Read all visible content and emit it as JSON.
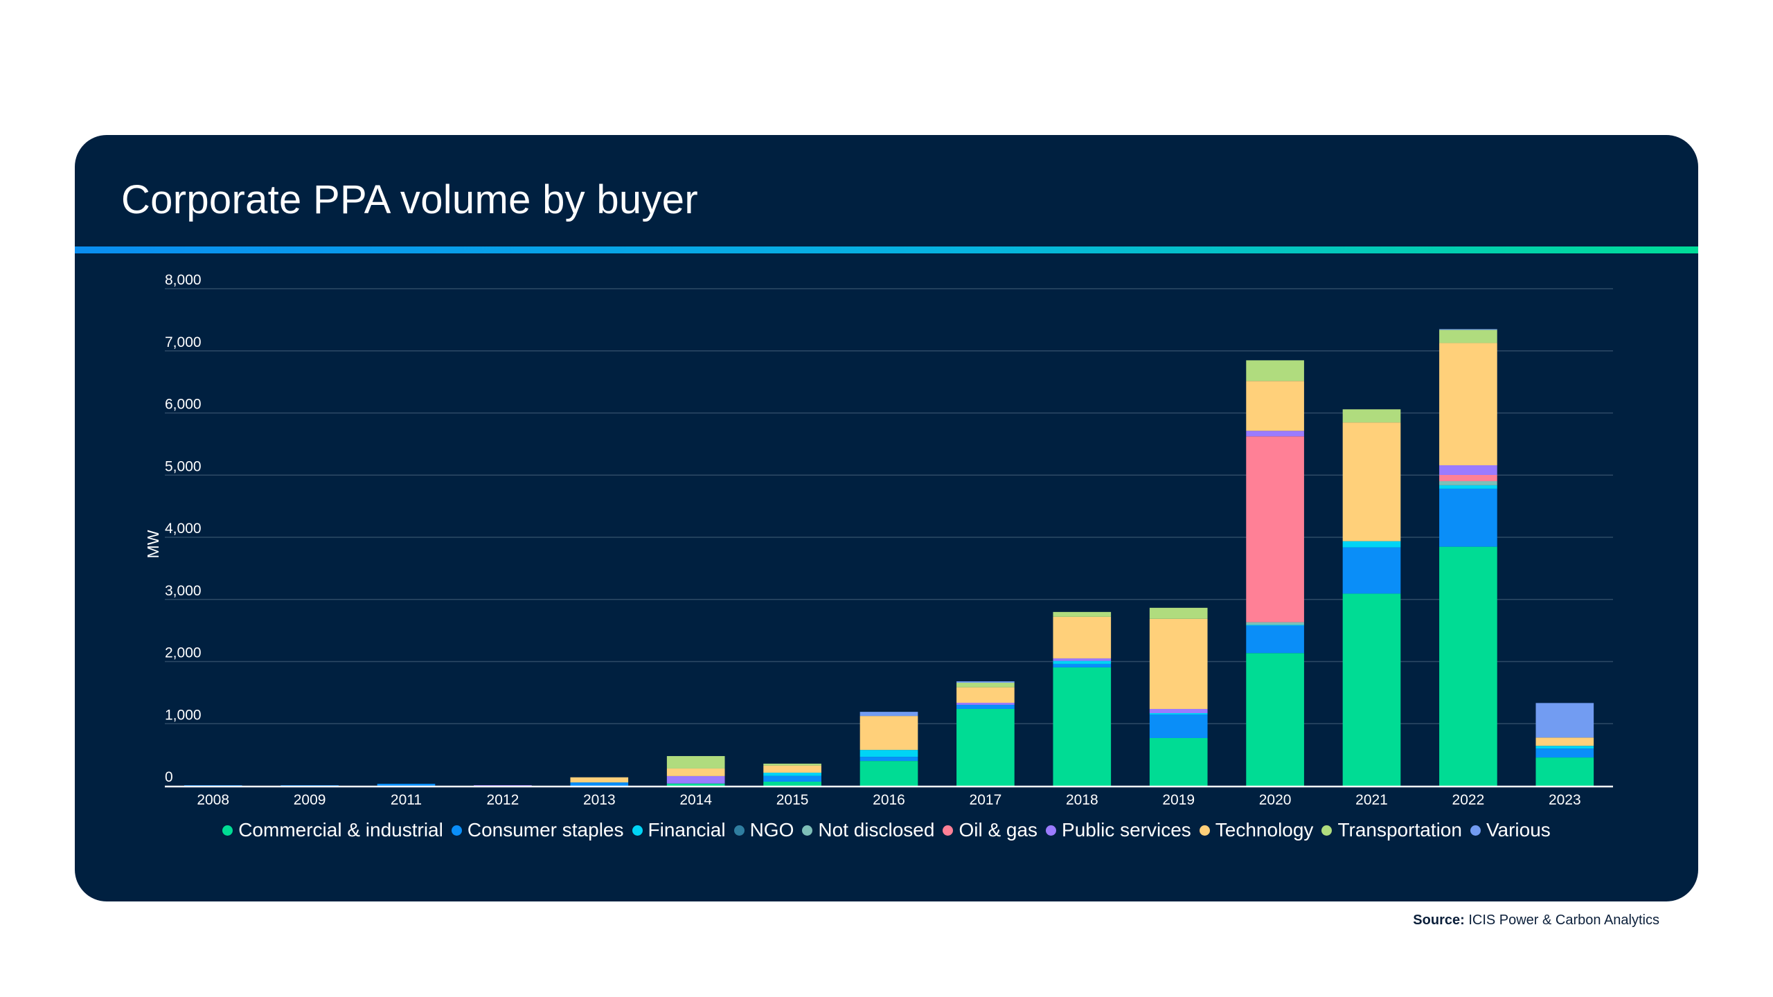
{
  "chart_data": {
    "type": "bar",
    "stacked": true,
    "title": "Corporate PPA volume by buyer",
    "xlabel": "",
    "ylabel": "MW",
    "ylim": [
      0,
      8000
    ],
    "yticks": [
      0,
      1000,
      2000,
      3000,
      4000,
      5000,
      6000,
      7000,
      8000
    ],
    "ytick_labels": [
      "0",
      "1,000",
      "2,000",
      "3,000",
      "4,000",
      "5,000",
      "6,000",
      "7,000",
      "8,000"
    ],
    "grid": true,
    "legend_position": "bottom-center",
    "categories": [
      "2008",
      "2009",
      "2011",
      "2012",
      "2013",
      "2014",
      "2015",
      "2016",
      "2017",
      "2018",
      "2019",
      "2020",
      "2021",
      "2022",
      "2023"
    ],
    "series": [
      {
        "name": "Commercial & industrial",
        "color": "#00dc94",
        "values": [
          0,
          0,
          0,
          0,
          0,
          37,
          67,
          400,
          1237,
          1906,
          769,
          2136,
          3093,
          3848,
          456
        ]
      },
      {
        "name": "Consumer staples",
        "color": "#0a8ef8",
        "values": [
          10,
          10,
          33,
          0,
          55,
          0,
          93,
          67,
          67,
          56,
          379,
          444,
          744,
          933,
          144
        ]
      },
      {
        "name": "Financial",
        "color": "#00d4f5",
        "values": [
          0,
          0,
          0,
          0,
          0,
          0,
          52,
          111,
          0,
          48,
          22,
          11,
          100,
          56,
          44
        ]
      },
      {
        "name": "NGO",
        "color": "#2f7ea0",
        "values": [
          0,
          0,
          0,
          0,
          0,
          0,
          0,
          0,
          0,
          0,
          0,
          0,
          0,
          0,
          0
        ]
      },
      {
        "name": "Not disclosed",
        "color": "#7ebfb8",
        "values": [
          0,
          0,
          0,
          0,
          0,
          0,
          0,
          0,
          0,
          0,
          0,
          43,
          0,
          66,
          0
        ]
      },
      {
        "name": "Oil & gas",
        "color": "#ff8096",
        "values": [
          0,
          0,
          0,
          0,
          0,
          0,
          0,
          0,
          0,
          0,
          0,
          2990,
          0,
          100,
          0
        ]
      },
      {
        "name": "Public services",
        "color": "#9b7bff",
        "values": [
          0,
          0,
          0,
          10,
          0,
          120,
          0,
          0,
          33,
          41,
          67,
          89,
          0,
          156,
          0
        ]
      },
      {
        "name": "Technology",
        "color": "#ffd07a",
        "values": [
          0,
          0,
          0,
          0,
          82,
          122,
          115,
          546,
          249,
          669,
          1450,
          802,
          1911,
          1967,
          133
        ]
      },
      {
        "name": "Transportation",
        "color": "#b0dc7e",
        "values": [
          0,
          0,
          0,
          0,
          0,
          200,
          30,
          0,
          74,
          78,
          178,
          333,
          211,
          212,
          0
        ]
      },
      {
        "name": "Various",
        "color": "#729cf2",
        "values": [
          0,
          0,
          0,
          0,
          0,
          0,
          0,
          67,
          22,
          0,
          0,
          0,
          0,
          12,
          556
        ]
      }
    ]
  },
  "source": {
    "label": "Source:",
    "text": " ICIS Power & Carbon Analytics"
  },
  "colors": {
    "card_background": "#002040",
    "page_background": "#ffffff",
    "gridline": "#2e4a66",
    "baseline": "#ffffff"
  }
}
